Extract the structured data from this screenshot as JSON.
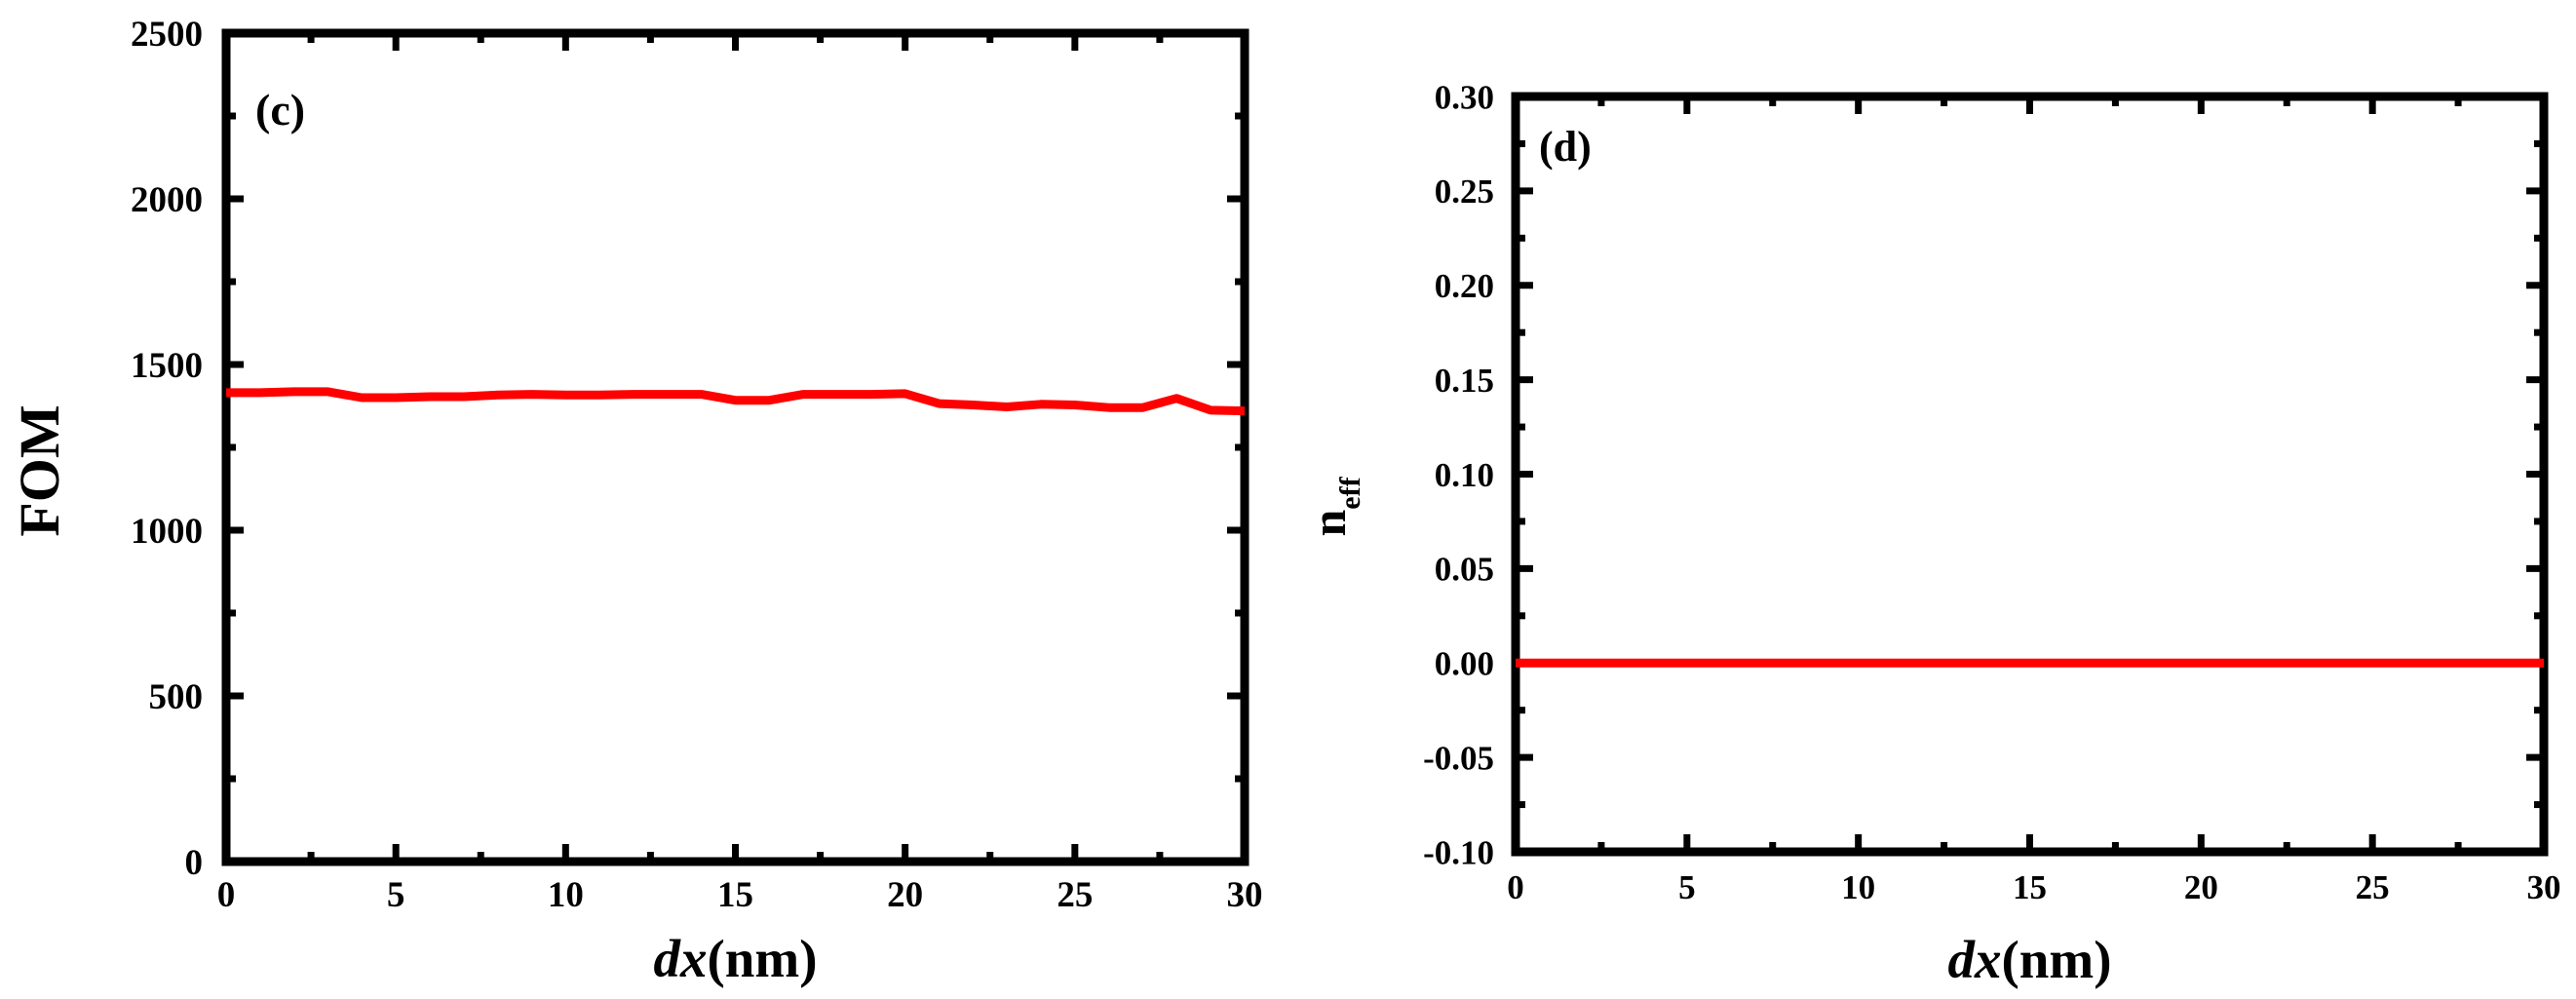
{
  "chart_data": [
    {
      "type": "line",
      "panel_label": "(c)",
      "xlabel_italic": "dx",
      "xlabel_unit": "(nm)",
      "ylabel": "FOM",
      "ylabel_sub": "",
      "xlim": [
        0,
        30
      ],
      "ylim": [
        0,
        2500
      ],
      "xticks": [
        0,
        5,
        10,
        15,
        20,
        25,
        30
      ],
      "xtick_labels": [
        "0",
        "5",
        "10",
        "15",
        "20",
        "25",
        "30"
      ],
      "yticks": [
        0,
        500,
        1000,
        1500,
        2000,
        2500
      ],
      "ytick_labels": [
        "0",
        "500",
        "1000",
        "1500",
        "2000",
        "2500"
      ],
      "grid": false,
      "series": [
        {
          "color": "#ff0000",
          "x": [
            0,
            1,
            2,
            3,
            4,
            5,
            6,
            7,
            8,
            9,
            10,
            11,
            12,
            13,
            14,
            15,
            16,
            17,
            18,
            19,
            20,
            21,
            22,
            23,
            24,
            25,
            26,
            27,
            28,
            29,
            30
          ],
          "y": [
            1415,
            1415,
            1418,
            1418,
            1400,
            1400,
            1403,
            1403,
            1408,
            1410,
            1408,
            1408,
            1410,
            1410,
            1410,
            1392,
            1392,
            1410,
            1410,
            1410,
            1412,
            1382,
            1378,
            1372,
            1380,
            1378,
            1370,
            1370,
            1398,
            1362,
            1360
          ]
        }
      ]
    },
    {
      "type": "line",
      "panel_label": "(d)",
      "xlabel_italic": "dx",
      "xlabel_unit": "(nm)",
      "ylabel": "n",
      "ylabel_sub": "eff",
      "xlim": [
        0,
        30
      ],
      "ylim": [
        -0.1,
        0.3
      ],
      "xticks": [
        0,
        5,
        10,
        15,
        20,
        25,
        30
      ],
      "xtick_labels": [
        "0",
        "5",
        "10",
        "15",
        "20",
        "25",
        "30"
      ],
      "yticks": [
        -0.1,
        -0.05,
        0.0,
        0.05,
        0.1,
        0.15,
        0.2,
        0.25,
        0.3
      ],
      "ytick_labels": [
        "-0.10",
        "-0.05",
        "0.00",
        "0.05",
        "0.10",
        "0.15",
        "0.20",
        "0.25",
        "0.30"
      ],
      "grid": false,
      "series": [
        {
          "color": "#ff0000",
          "x": [
            0,
            5,
            10,
            15,
            20,
            25,
            30
          ],
          "y": [
            0,
            0,
            0,
            0,
            0,
            0,
            0
          ]
        }
      ]
    }
  ]
}
